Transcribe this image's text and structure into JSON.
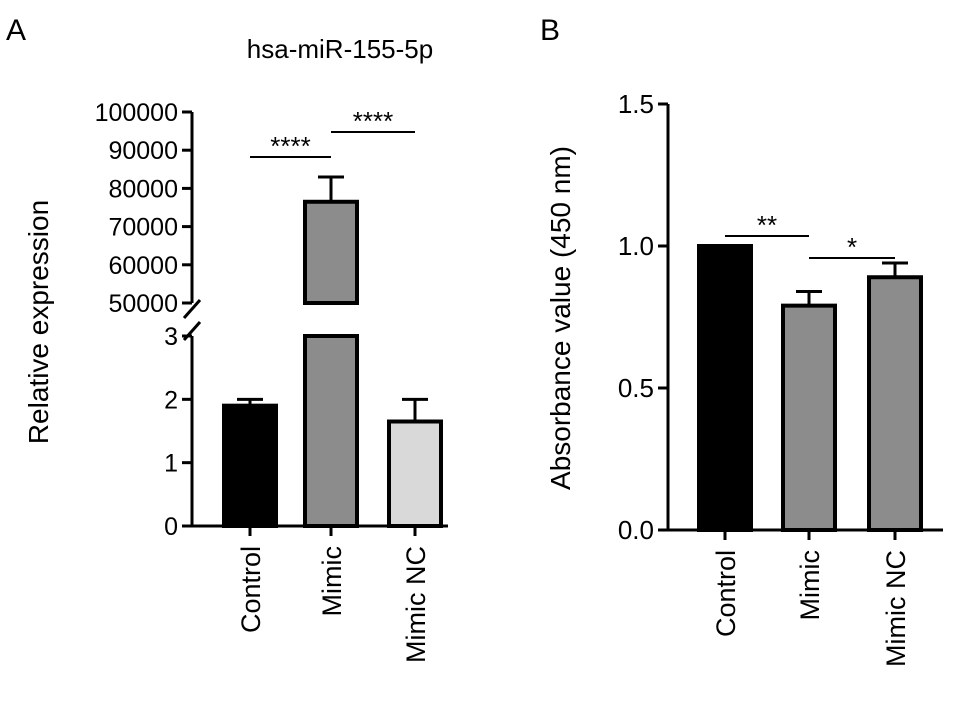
{
  "chart_data": [
    {
      "panel_label": "A",
      "type": "bar",
      "title": "hsa-miR-155-5p",
      "ylabel": "Relative expression",
      "xlabel": "",
      "categories": [
        "Control",
        "Mimic",
        "Mimic NC"
      ],
      "values": [
        1.9,
        76500,
        1.65
      ],
      "errors": [
        0.1,
        6500,
        0.35
      ],
      "bar_colors": [
        "#000000",
        "#8c8c8c",
        "#d9d9d9"
      ],
      "broken_axis": true,
      "lower_segment": {
        "ylim": [
          0,
          3
        ],
        "ticks": [
          "0",
          "1",
          "2",
          "3"
        ]
      },
      "upper_segment": {
        "ylim": [
          50000,
          100000
        ],
        "ticks": [
          "50000",
          "60000",
          "70000",
          "80000",
          "90000",
          "100000"
        ]
      },
      "significance": [
        {
          "from": "Control",
          "to": "Mimic",
          "label": "****"
        },
        {
          "from": "Mimic",
          "to": "Mimic NC",
          "label": "****"
        }
      ],
      "grid": false
    },
    {
      "panel_label": "B",
      "type": "bar",
      "title": "",
      "ylabel": "Absorbance value (450 nm)",
      "xlabel": "",
      "categories": [
        "Control",
        "Mimic",
        "Mimic NC"
      ],
      "values": [
        1.0,
        0.79,
        0.89
      ],
      "errors": [
        0.0,
        0.05,
        0.05
      ],
      "bar_colors": [
        "#000000",
        "#8c8c8c",
        "#8c8c8c"
      ],
      "ylim": [
        0.0,
        1.5
      ],
      "ticks": [
        "0.0",
        "0.5",
        "1.0",
        "1.5"
      ],
      "significance": [
        {
          "from": "Control",
          "to": "Mimic",
          "label": "**"
        },
        {
          "from": "Mimic",
          "to": "Mimic NC",
          "label": "*"
        }
      ],
      "grid": false
    }
  ]
}
